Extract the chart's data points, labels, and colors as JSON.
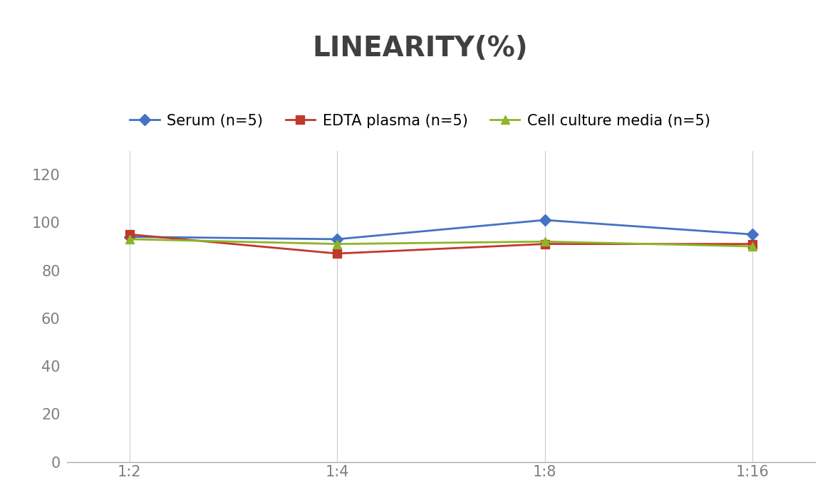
{
  "title": "LINEARITY(%)",
  "title_fontsize": 28,
  "title_fontweight": "bold",
  "title_color": "#404040",
  "x_labels": [
    "1:2",
    "1:4",
    "1:8",
    "1:16"
  ],
  "x_values": [
    0,
    1,
    2,
    3
  ],
  "series": [
    {
      "label": "Serum (n=5)",
      "values": [
        94,
        93,
        101,
        95
      ],
      "color": "#4472C4",
      "marker": "D",
      "markersize": 8,
      "linewidth": 2
    },
    {
      "label": "EDTA plasma (n=5)",
      "values": [
        95,
        87,
        91,
        91
      ],
      "color": "#C0392B",
      "marker": "s",
      "markersize": 8,
      "linewidth": 2
    },
    {
      "label": "Cell culture media (n=5)",
      "values": [
        93,
        91,
        92,
        90
      ],
      "color": "#8DB528",
      "marker": "^",
      "markersize": 8,
      "linewidth": 2
    }
  ],
  "ylim": [
    0,
    130
  ],
  "yticks": [
    0,
    20,
    40,
    60,
    80,
    100,
    120
  ],
  "grid_color": "#CCCCCC",
  "grid_linestyle": "-",
  "grid_linewidth": 0.8,
  "background_color": "#FFFFFF",
  "legend_fontsize": 15,
  "tick_fontsize": 15,
  "tick_color": "#808080"
}
